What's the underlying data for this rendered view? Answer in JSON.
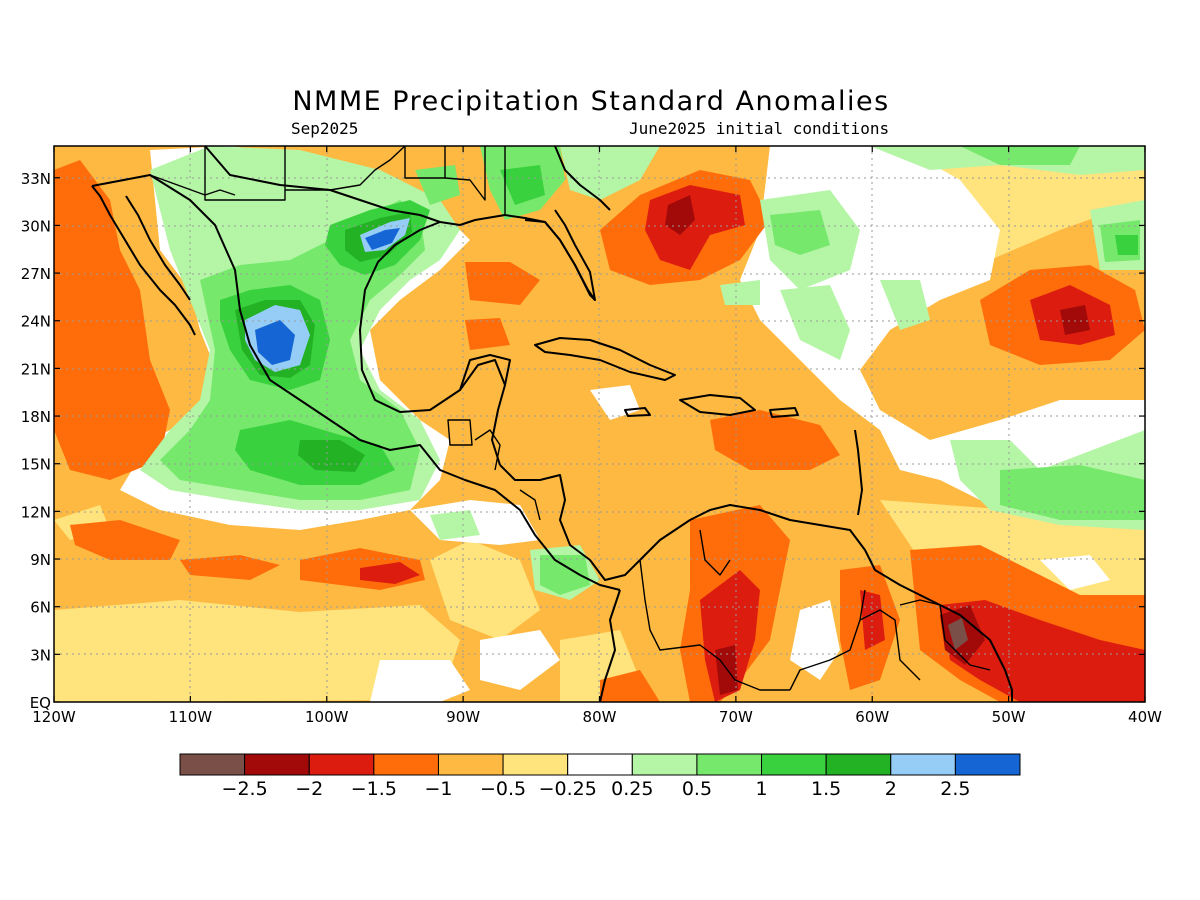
{
  "title": "NMME Precipitation Standard Anomalies",
  "subtitle_left": "Sep2025",
  "subtitle_right": "June2025 initial conditions",
  "lon_ticks": [
    "120W",
    "110W",
    "100W",
    "90W",
    "80W",
    "70W",
    "60W",
    "50W",
    "40W"
  ],
  "lat_ticks": [
    "EQ",
    "3N",
    "6N",
    "9N",
    "12N",
    "15N",
    "18N",
    "21N",
    "24N",
    "27N",
    "30N",
    "33N"
  ],
  "colorbar": {
    "colors": [
      "#7a4f47",
      "#a20a0a",
      "#dd1c10",
      "#ff6d0b",
      "#fdb941",
      "#ffe37d",
      "#ffffff",
      "#b5f5a6",
      "#76e86c",
      "#3ad13f",
      "#22b224",
      "#95cdf7",
      "#1566d4"
    ],
    "labels": [
      "−2.5",
      "−2",
      "−1.5",
      "−1",
      "−0.5",
      "−0.25",
      "0.25",
      "0.5",
      "1",
      "1.5",
      "2",
      "2.5"
    ]
  }
}
